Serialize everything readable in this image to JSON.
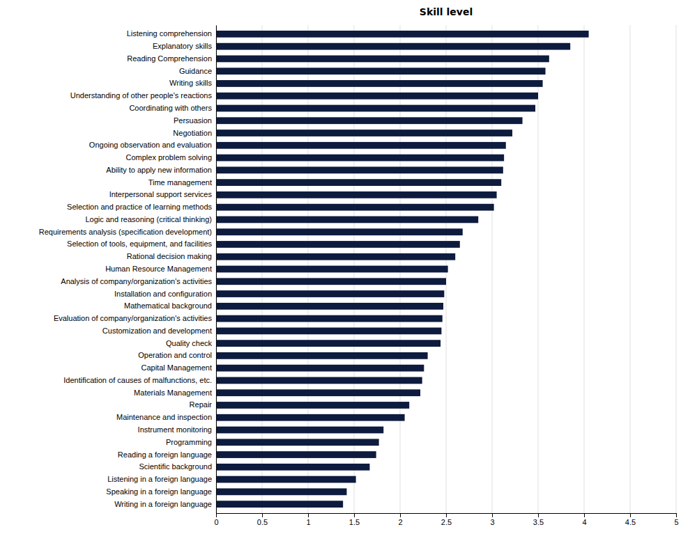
{
  "chart_data": {
    "type": "bar",
    "orientation": "horizontal",
    "title": "Skill level",
    "categories": [
      "Listening comprehension",
      "Explanatory skills",
      "Reading Comprehension",
      "Guidance",
      "Writing skills",
      "Understanding of other people's reactions",
      "Coordinating with others",
      "Persuasion",
      "Negotiation",
      "Ongoing observation and evaluation",
      "Complex problem solving",
      "Ability to apply new information",
      "Time management",
      "Interpersonal support services",
      "Selection and practice of learning methods",
      "Logic and reasoning (critical thinking)",
      "Requirements analysis (specification development)",
      "Selection of tools, equipment, and facilities",
      "Rational decision making",
      "Human Resource Management",
      "Analysis of company/organization's activities",
      "Installation and configuration",
      "Mathematical background",
      "Evaluation of company/organization's activities",
      "Customization and development",
      "Quality check",
      "Operation and control",
      "Capital Management",
      "Identification of causes of malfunctions, etc.",
      "Materials Management",
      "Repair",
      "Maintenance and inspection",
      "Instrument monitoring",
      "Programming",
      "Reading a foreign language",
      "Scientific background",
      "Listening in a foreign language",
      "Speaking in a foreign language",
      "Writing in a foreign language"
    ],
    "values": [
      4.05,
      3.85,
      3.62,
      3.58,
      3.55,
      3.5,
      3.47,
      3.33,
      3.22,
      3.15,
      3.13,
      3.12,
      3.1,
      3.05,
      3.02,
      2.85,
      2.68,
      2.65,
      2.6,
      2.52,
      2.5,
      2.48,
      2.47,
      2.46,
      2.45,
      2.44,
      2.3,
      2.26,
      2.24,
      2.22,
      2.1,
      2.05,
      1.82,
      1.77,
      1.74,
      1.67,
      1.52,
      1.42,
      1.38
    ],
    "color": "#0d1b3e",
    "xlim": [
      0,
      5
    ],
    "xticks": [
      0,
      0.5,
      1,
      1.5,
      2,
      2.5,
      3,
      3.5,
      4,
      4.5,
      5
    ],
    "grid": true
  }
}
